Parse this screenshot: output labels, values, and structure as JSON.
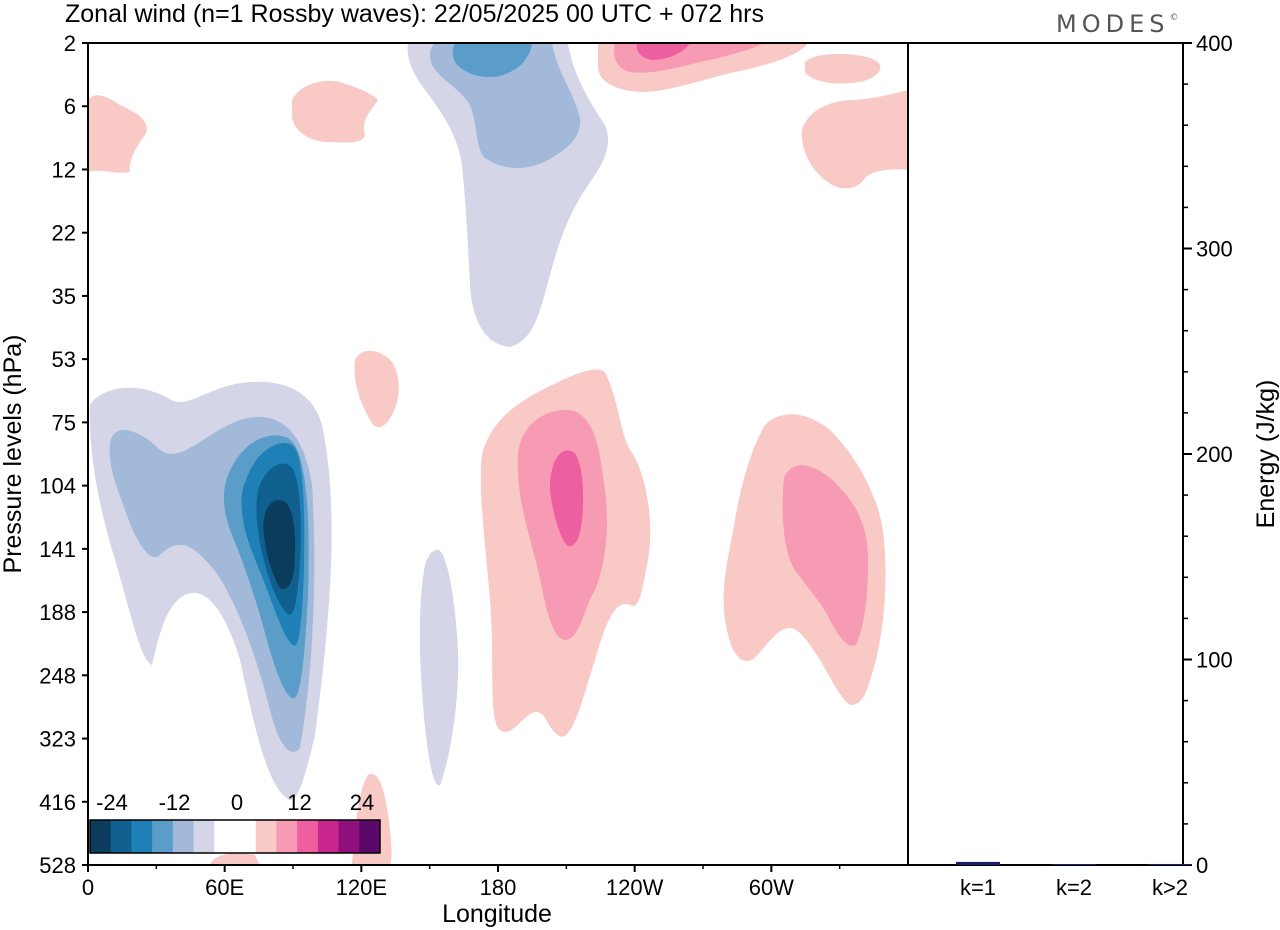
{
  "title": "Zonal wind (n=1 Rossby waves):  22/05/2025  00 UTC  + 072 hrs",
  "brand": "MODES",
  "brand_mark": "©",
  "chart_data": [
    {
      "type": "heatmap",
      "xlabel": "Longitude",
      "ylabel": "Pressure levels (hPa)",
      "x_ticks": [
        "0",
        "60E",
        "120E",
        "180",
        "120W",
        "60W"
      ],
      "x_tick_degrees": [
        0,
        60,
        120,
        180,
        240,
        300
      ],
      "xlim": [
        0,
        360
      ],
      "y_ticks": [
        "2",
        "6",
        "12",
        "22",
        "35",
        "53",
        "75",
        "104",
        "141",
        "188",
        "248",
        "323",
        "416",
        "528"
      ],
      "colorbar": {
        "labels": [
          "-24",
          "-12",
          "0",
          "12",
          "24"
        ],
        "colors": [
          "#0b3c5d",
          "#0f5f8f",
          "#1f7fb7",
          "#5b9dc9",
          "#a2b9da",
          "#d4d6e8",
          "#ffffff",
          "#ffffff",
          "#f9c9c6",
          "#f79ab4",
          "#ee5fa0",
          "#c9268f",
          "#8f0f7c",
          "#5a0869"
        ]
      },
      "features": [
        {
          "sign": "negative",
          "lon": 80,
          "pressure": 141,
          "min_value": -24,
          "span": "75-416 hPa"
        },
        {
          "sign": "negative",
          "lon": 185,
          "pressure": 2,
          "min_value": -12,
          "span": "2-53 hPa"
        },
        {
          "sign": "negative",
          "lon": 153,
          "pressure": 248,
          "min_value": -4,
          "span": "141-416 hPa"
        },
        {
          "sign": "positive",
          "lon": 210,
          "pressure": 104,
          "max_value": 16,
          "span": "53-323 hPa"
        },
        {
          "sign": "positive",
          "lon": 325,
          "pressure": 141,
          "max_value": 12,
          "span": "75-323 hPa"
        },
        {
          "sign": "positive",
          "lon": 245,
          "pressure": 2,
          "max_value": 16,
          "span": "2-6 hPa"
        },
        {
          "sign": "positive",
          "lon": 30,
          "pressure": 6,
          "max_value": 4,
          "span": "2-12 hPa"
        },
        {
          "sign": "positive",
          "lon": 345,
          "pressure": 6,
          "max_value": 4,
          "span": "2-22 hPa"
        }
      ]
    },
    {
      "type": "bar",
      "ylabel": "Energy (J/kg)",
      "categories": [
        "k=1",
        "k=2",
        "k>2"
      ],
      "values": [
        1.5,
        0.3,
        0.5
      ],
      "ylim": [
        0,
        400
      ],
      "y_ticks": [
        "0",
        "100",
        "200",
        "300",
        "400"
      ],
      "color": "#1a1a6e"
    }
  ]
}
